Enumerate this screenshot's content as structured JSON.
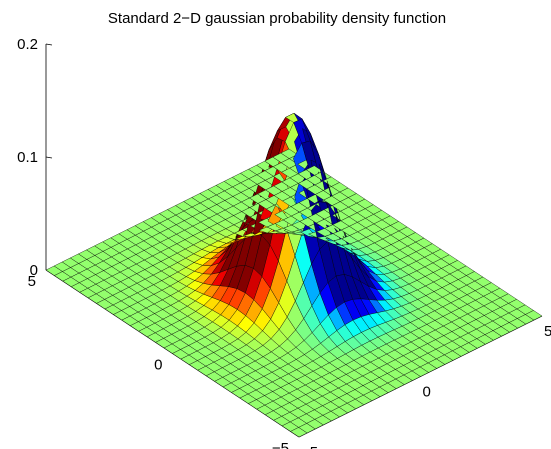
{
  "chart_data": {
    "type": "surface",
    "title": "Standard 2−D gaussian probability density function",
    "xlabel": "",
    "ylabel": "",
    "zlabel": "",
    "function": "z = exp(-(x^2+y^2)/2) / (2*pi)",
    "x": {
      "min": -5,
      "max": 5,
      "ticks": [
        -5,
        0,
        5
      ],
      "tick_labels": [
        "−5",
        "0",
        "5"
      ]
    },
    "y": {
      "min": -5,
      "max": 5,
      "ticks": [
        -5,
        0,
        5
      ],
      "tick_labels": [
        "−5",
        "0",
        "5"
      ]
    },
    "z": {
      "min": 0,
      "max": 0.2,
      "ticks": [
        0,
        0.1,
        0.2
      ],
      "tick_labels": [
        "0",
        "0.1",
        "0.2"
      ]
    },
    "grid_points": 31,
    "peak": {
      "x": 0,
      "y": 0,
      "z": 0.159
    },
    "colormap": [
      "#00008f",
      "#0000ff",
      "#00ffff",
      "#80ff80",
      "#ffff00",
      "#ff8000",
      "#ff0000",
      "#800000"
    ]
  }
}
